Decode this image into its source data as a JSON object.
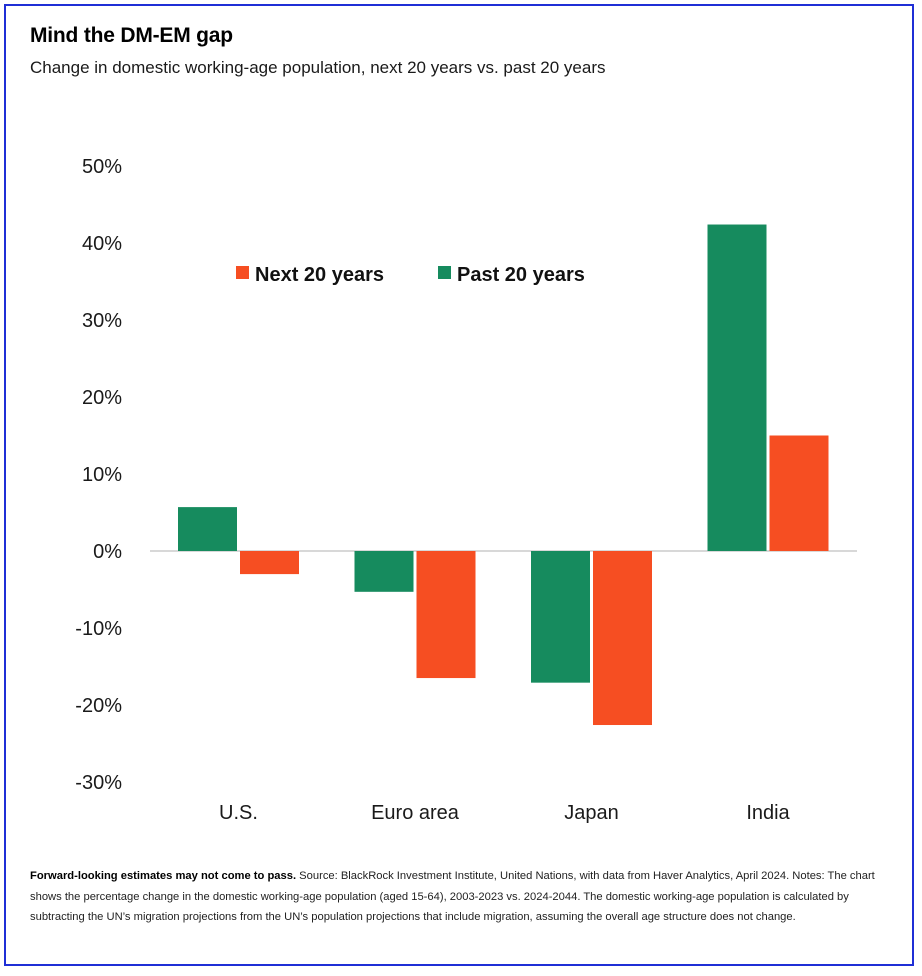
{
  "header": {
    "title": "Mind the DM-EM gap",
    "subtitle": "Change in domestic working-age population, next 20 years vs. past 20 years"
  },
  "footnote": {
    "bold": "Forward-looking estimates may not come to pass.",
    "text": " Source: BlackRock Investment Institute, United Nations, with data from Haver Analytics, April 2024. Notes: The chart shows the percentage change in the domestic working-age population (aged 15-64), 2003-2023 vs. 2024-2044. The domestic working-age population is calculated by subtracting the UN’s migration projections from the UN’s population projections that include migration, assuming the overall age structure does not change."
  },
  "colors": {
    "next": "#f64e22",
    "past": "#168b5e",
    "zero_line": "#cccccc",
    "border": "#1f2fd6"
  },
  "chart_data": {
    "type": "bar",
    "title": "Mind the DM-EM gap",
    "subtitle": "Change in domestic working-age population, next 20 years vs. past 20 years",
    "xlabel": "",
    "ylabel": "",
    "categories": [
      "U.S.",
      "Euro area",
      "Japan",
      "India"
    ],
    "series": [
      {
        "name": "Past 20 years",
        "color": "#168b5e",
        "values": [
          5.7,
          -5.3,
          -17.1,
          42.4
        ]
      },
      {
        "name": "Next 20 years",
        "color": "#f64e22",
        "values": [
          -3.0,
          -16.5,
          -22.6,
          15.0
        ]
      }
    ],
    "ylim": [
      -30,
      50
    ],
    "yticks": [
      50,
      40,
      30,
      20,
      10,
      0,
      -10,
      -20,
      -30
    ],
    "ytick_labels": [
      "50%",
      "40%",
      "30%",
      "20%",
      "10%",
      "0%",
      "-10%",
      "-20%",
      "-30%"
    ],
    "legend": {
      "placement": "top-center",
      "entries": [
        {
          "name": "Next 20 years",
          "color": "#f64e22"
        },
        {
          "name": "Past 20 years",
          "color": "#168b5e"
        }
      ]
    },
    "grid": false,
    "units": "%"
  }
}
